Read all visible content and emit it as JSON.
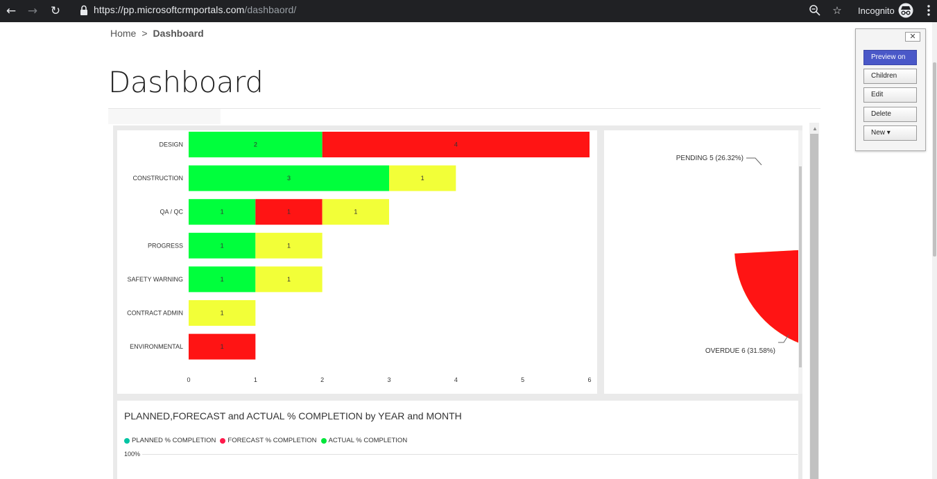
{
  "browser": {
    "url_host": "https://pp.microsoftcrmportals.com",
    "url_path": "/dashbaord/",
    "profile_label": "Incognito"
  },
  "breadcrumb": {
    "home": "Home",
    "separator": ">",
    "current": "Dashboard"
  },
  "page": {
    "title": "Dashboard"
  },
  "admin_toolbar": {
    "close": "✕",
    "preview": "Preview on",
    "children": "Children",
    "edit": "Edit",
    "delete": "Delete",
    "new": "New ▾"
  },
  "chart_data": [
    {
      "type": "bar",
      "orientation": "horizontal",
      "stacked": true,
      "categories": [
        "DESIGN",
        "CONSTRUCTION",
        "QA / QC",
        "PROGRESS",
        "SAFETY WARNING",
        "CONTRACT ADMIN",
        "ENVIRONMENTAL"
      ],
      "segments": [
        [
          {
            "value": 2,
            "color": "#00ff3c"
          },
          {
            "value": 4,
            "color": "#ff1414"
          }
        ],
        [
          {
            "value": 3,
            "color": "#00ff3c"
          },
          {
            "value": 1,
            "color": "#f2ff38"
          }
        ],
        [
          {
            "value": 1,
            "color": "#00ff3c"
          },
          {
            "value": 1,
            "color": "#ff1414"
          },
          {
            "value": 1,
            "color": "#f2ff38"
          }
        ],
        [
          {
            "value": 1,
            "color": "#00ff3c"
          },
          {
            "value": 1,
            "color": "#f2ff38"
          }
        ],
        [
          {
            "value": 1,
            "color": "#00ff3c"
          },
          {
            "value": 1,
            "color": "#f2ff38"
          }
        ],
        [
          {
            "value": 1,
            "color": "#f2ff38"
          }
        ],
        [
          {
            "value": 1,
            "color": "#ff1414"
          }
        ]
      ],
      "x_ticks": [
        "0",
        "1",
        "2",
        "3",
        "4",
        "5",
        "6"
      ],
      "xlim": [
        0,
        6
      ],
      "grid": false
    },
    {
      "type": "pie",
      "slices": [
        {
          "label": "PENDING 5 (26.32%)",
          "value": 5,
          "percent": 26.32,
          "color": "#f2ff38"
        },
        {
          "label": "OVERDUE 6 (31.58%)",
          "value": 6,
          "percent": 31.58,
          "color": "#ff1414"
        }
      ]
    },
    {
      "type": "line",
      "title": "PLANNED,FORECAST and ACTUAL % COMPLETION by YEAR and MONTH",
      "series": [
        {
          "name": "PLANNED % COMPLETION",
          "color": "#00c4a3"
        },
        {
          "name": "FORECAST % COMPLETION",
          "color": "#ff1a4b"
        },
        {
          "name": "ACTUAL % COMPLETION",
          "color": "#00e63a"
        }
      ],
      "y_ticks": [
        "100%"
      ]
    }
  ]
}
